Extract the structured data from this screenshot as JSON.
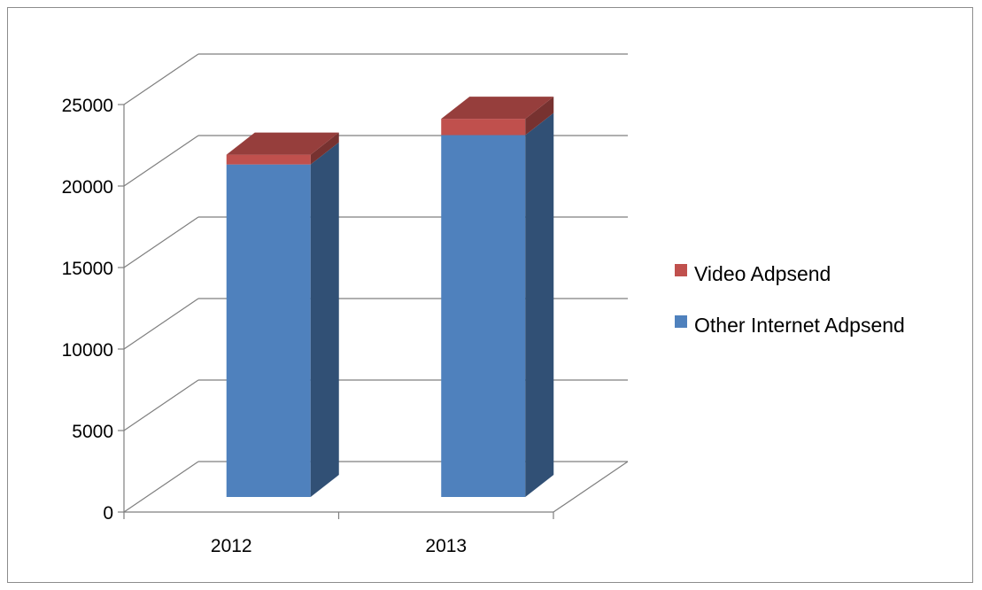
{
  "chart_data": {
    "type": "bar",
    "stacked": true,
    "three_d": true,
    "categories": [
      "2012",
      "2013"
    ],
    "series": [
      {
        "name": "Other Internet Adpsend",
        "color": "#4f81bd",
        "values": [
          20400,
          22200
        ]
      },
      {
        "name": "Video Adpsend",
        "color": "#c0504d",
        "values": [
          600,
          1000
        ]
      }
    ],
    "ylim": [
      0,
      25000
    ],
    "yticks": [
      0,
      5000,
      10000,
      15000,
      20000,
      25000
    ],
    "ytick_labels": [
      "0",
      "5000",
      "10000",
      "15000",
      "20000",
      "25000"
    ],
    "grid": true,
    "legend_position": "right",
    "legend_order": [
      "Video Adpsend",
      "Other Internet Adpsend"
    ],
    "title": "",
    "xlabel": "",
    "ylabel": ""
  }
}
